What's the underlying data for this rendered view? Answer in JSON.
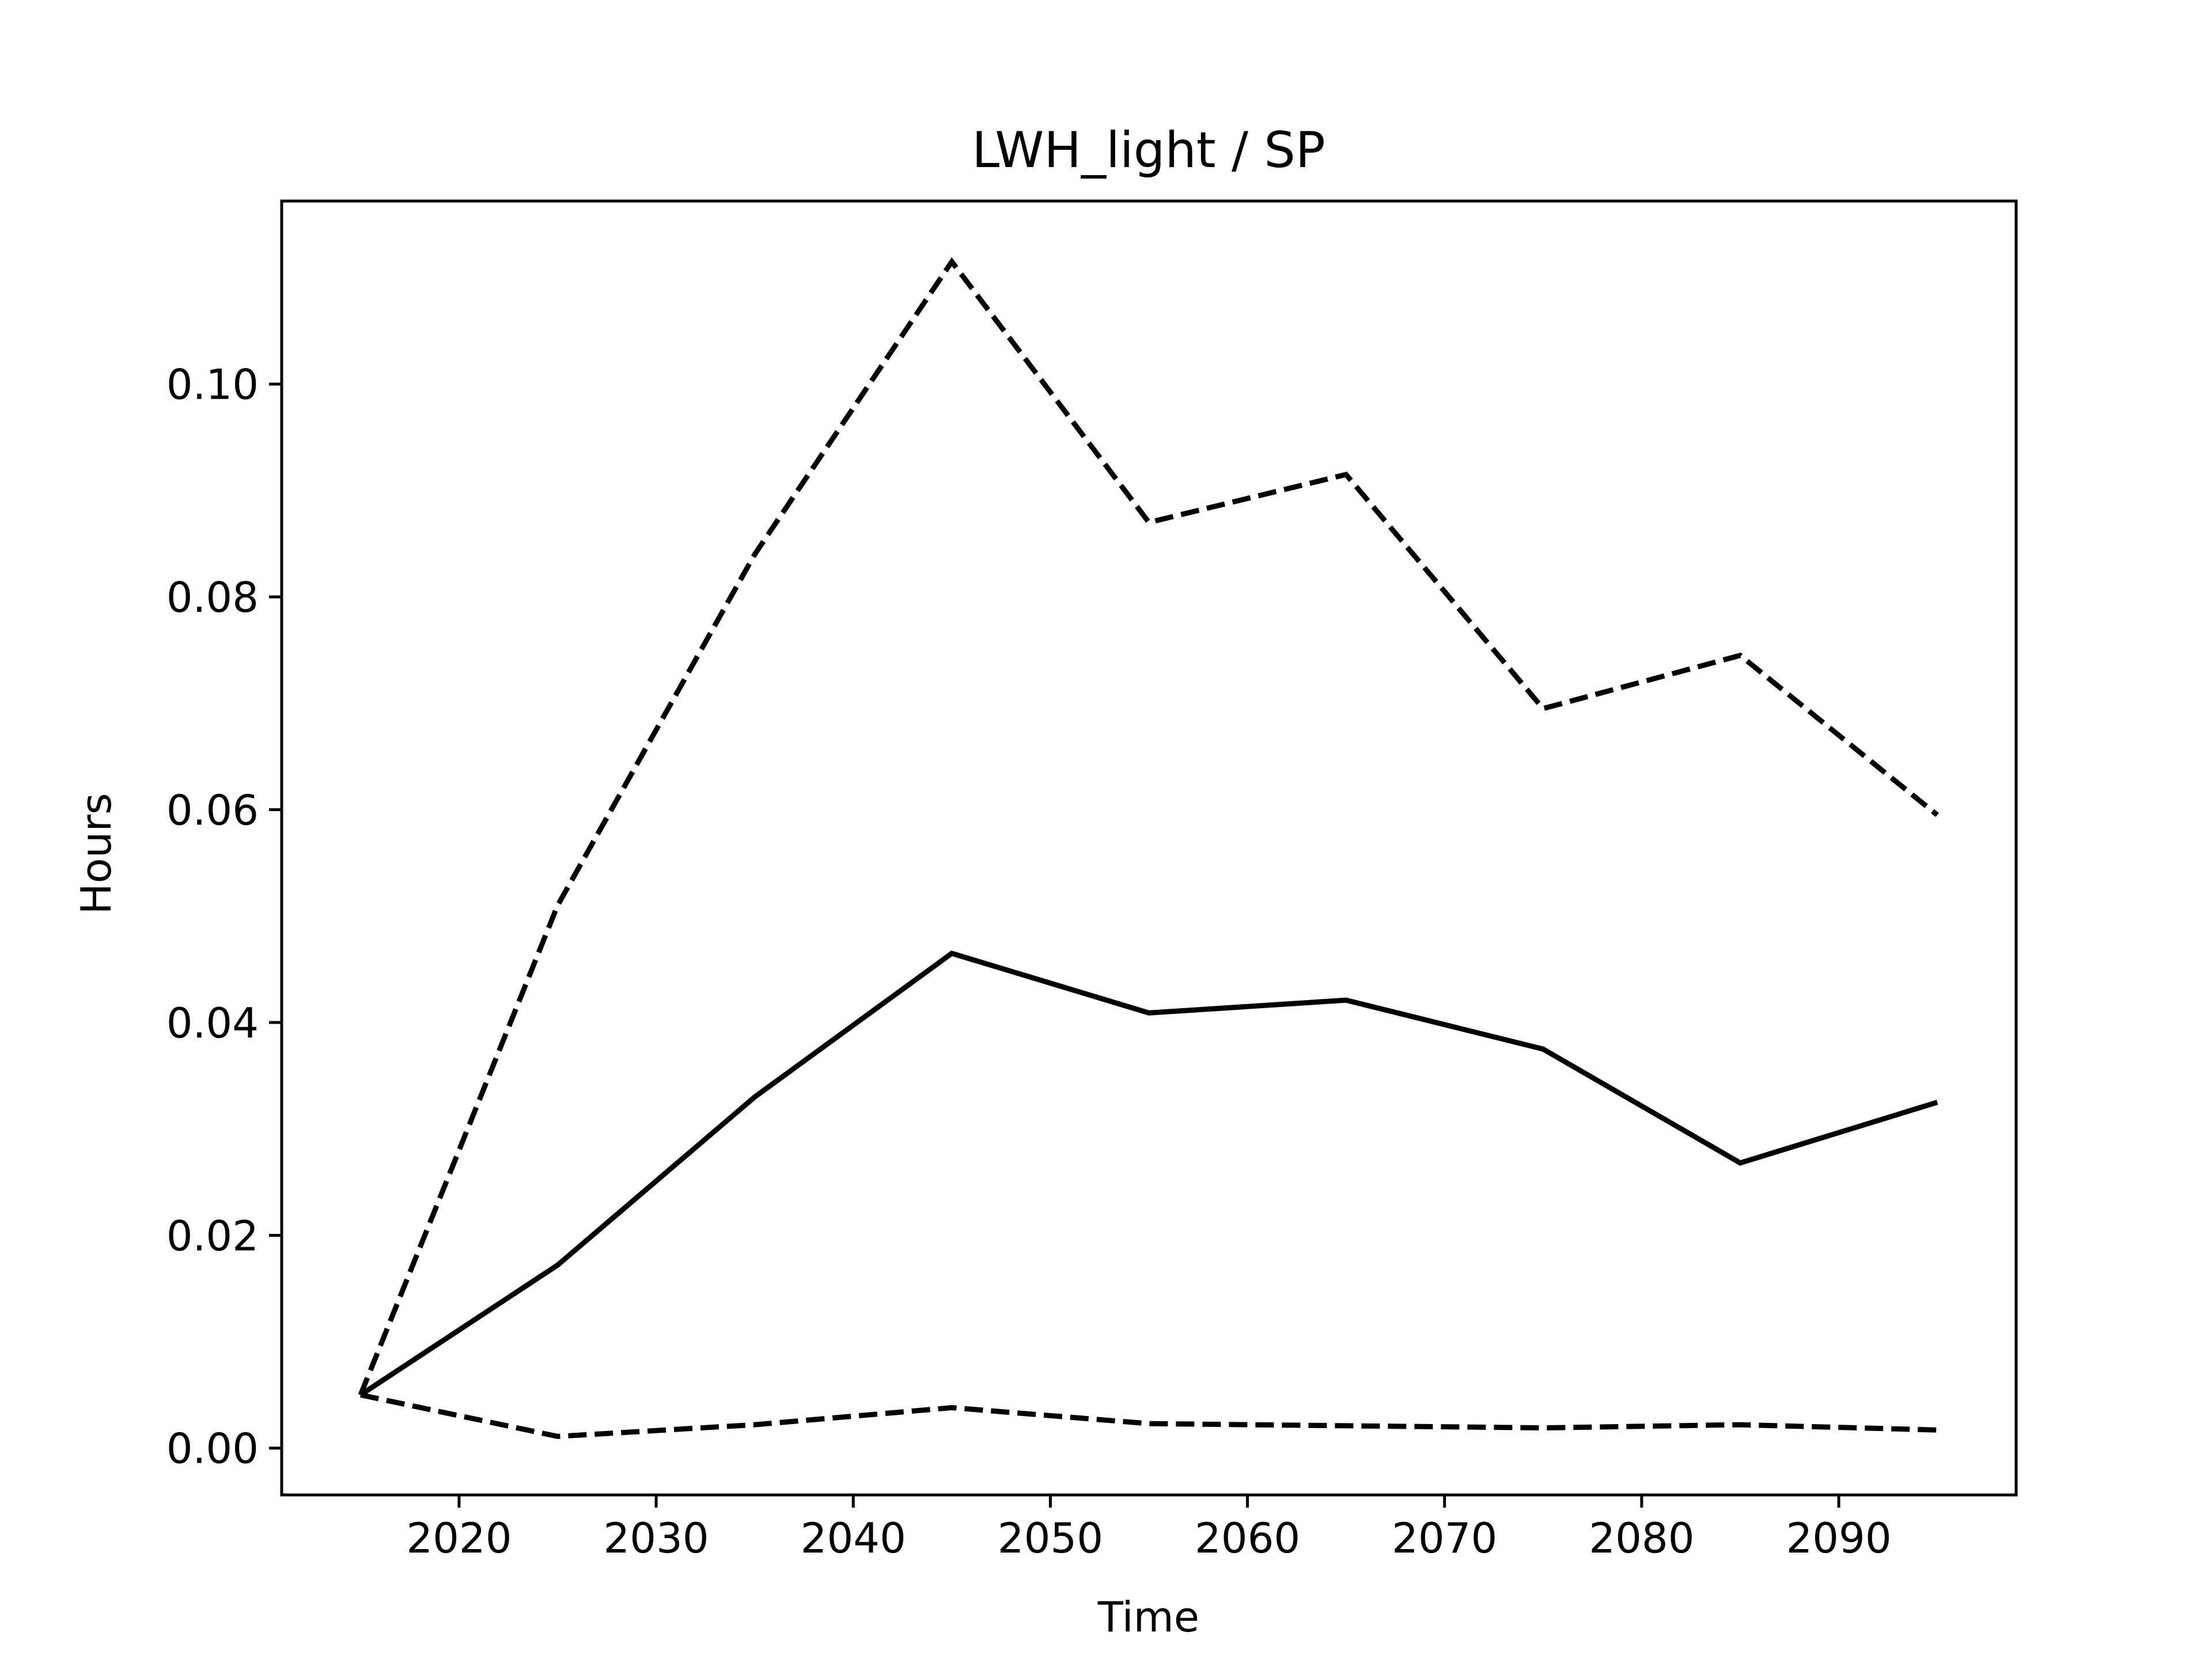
{
  "chart_data": {
    "type": "line",
    "title": "LWH_light / SP",
    "xlabel": "Time",
    "ylabel": "Hours",
    "x": [
      2015,
      2025,
      2035,
      2045,
      2055,
      2065,
      2075,
      2085,
      2095
    ],
    "series": [
      {
        "style": "dashed",
        "values": [
          0.005,
          0.051,
          0.084,
          0.1115,
          0.087,
          0.0915,
          0.0695,
          0.0745,
          0.0595
        ]
      },
      {
        "style": "solid",
        "values": [
          0.005,
          0.0172,
          0.033,
          0.0465,
          0.0409,
          0.0421,
          0.0375,
          0.0268,
          0.0325
        ]
      },
      {
        "style": "dashed",
        "values": [
          0.005,
          0.0011,
          0.0022,
          0.0038,
          0.0023,
          0.0021,
          0.0019,
          0.0022,
          0.0017
        ]
      }
    ],
    "xlim": [
      2011.0,
      2099.0
    ],
    "ylim": [
      -0.0044,
      0.1172
    ],
    "xticks": [
      2020,
      2030,
      2040,
      2050,
      2060,
      2070,
      2080,
      2090
    ],
    "xtick_labels": [
      "2020",
      "2030",
      "2040",
      "2050",
      "2060",
      "2070",
      "2080",
      "2090"
    ],
    "yticks": [
      0.0,
      0.02,
      0.04,
      0.06,
      0.08,
      0.1
    ],
    "ytick_labels": [
      "0.00",
      "0.02",
      "0.04",
      "0.06",
      "0.08",
      "0.10"
    ],
    "grid": false,
    "line_color": "#000000"
  }
}
